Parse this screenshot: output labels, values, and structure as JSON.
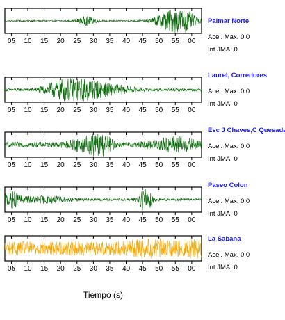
{
  "chart_data": [
    {
      "type": "line",
      "station": "Palmar Norte",
      "info": {
        "acel_label": "Acel. Max.",
        "acel_value": "0.0",
        "jma_label": "Int JMA:",
        "jma_value": "0"
      },
      "color": "#0a6b0a",
      "x_ticks": [
        "05",
        "10",
        "15",
        "20",
        "25",
        "30",
        "35",
        "40",
        "45",
        "50",
        "55",
        "00"
      ],
      "events": [
        {
          "t": 28,
          "amp": 0.35,
          "dur": 4
        },
        {
          "t": 52,
          "amp": 0.55,
          "dur": 6
        },
        {
          "t": 57,
          "amp": 0.95,
          "dur": 6
        }
      ],
      "baseline_noise": 0.06
    },
    {
      "type": "line",
      "station": "Laurel, Corredores",
      "info": {
        "acel_label": "Acel. Max.",
        "acel_value": "0.0",
        "jma_label": "Int JMA:",
        "jma_value": "0"
      },
      "color": "#0a6b0a",
      "x_ticks": [
        "05",
        "10",
        "15",
        "20",
        "25",
        "30",
        "35",
        "40",
        "45",
        "50",
        "55",
        "00"
      ],
      "events": [
        {
          "t": 20,
          "amp": 0.5,
          "dur": 8
        },
        {
          "t": 27,
          "amp": 0.95,
          "dur": 10
        },
        {
          "t": 38,
          "amp": 0.25,
          "dur": 8
        }
      ],
      "baseline_noise": 0.12
    },
    {
      "type": "line",
      "station": "Esc J Chaves,C Quesada",
      "info": {
        "acel_label": "Acel. Max.",
        "acel_value": "0.0",
        "jma_label": "Int JMA:",
        "jma_value": "0"
      },
      "color": "#0a6b0a",
      "x_ticks": [
        "05",
        "10",
        "15",
        "20",
        "25",
        "30",
        "35",
        "40",
        "45",
        "50",
        "55",
        "00"
      ],
      "events": [
        {
          "t": 32,
          "amp": 0.95,
          "dur": 5
        },
        {
          "t": 26,
          "amp": 0.4,
          "dur": 6
        },
        {
          "t": 55,
          "amp": 0.55,
          "dur": 10
        }
      ],
      "baseline_noise": 0.22
    },
    {
      "type": "line",
      "station": "Paseo Colon",
      "info": {
        "acel_label": "Acel. Max.",
        "acel_value": "0.0",
        "jma_label": "Int JMA:",
        "jma_value": "0"
      },
      "color": "#0a6b0a",
      "x_ticks": [
        "05",
        "10",
        "15",
        "20",
        "25",
        "30",
        "35",
        "40",
        "45",
        "50",
        "55",
        "00"
      ],
      "events": [
        {
          "t": 5,
          "amp": 0.6,
          "dur": 4
        },
        {
          "t": 46,
          "amp": 1.0,
          "dur": 3
        },
        {
          "t": 15,
          "amp": 0.25,
          "dur": 12
        }
      ],
      "baseline_noise": 0.1
    },
    {
      "type": "line",
      "station": "La Sabana",
      "info": {
        "acel_label": "Acel. Max.",
        "acel_value": "0.0",
        "jma_label": "Int JMA:",
        "jma_value": "0"
      },
      "color": "#f5a800",
      "x_ticks": [
        "05",
        "10",
        "15",
        "20",
        "25",
        "30",
        "35",
        "40",
        "45",
        "50",
        "55",
        "00"
      ],
      "events": [
        {
          "t": 48,
          "amp": 0.25,
          "dur": 10
        },
        {
          "t": 62,
          "amp": 0.3,
          "dur": 6
        }
      ],
      "baseline_noise": 0.6
    }
  ],
  "xlabel": "Tiempo (s)"
}
